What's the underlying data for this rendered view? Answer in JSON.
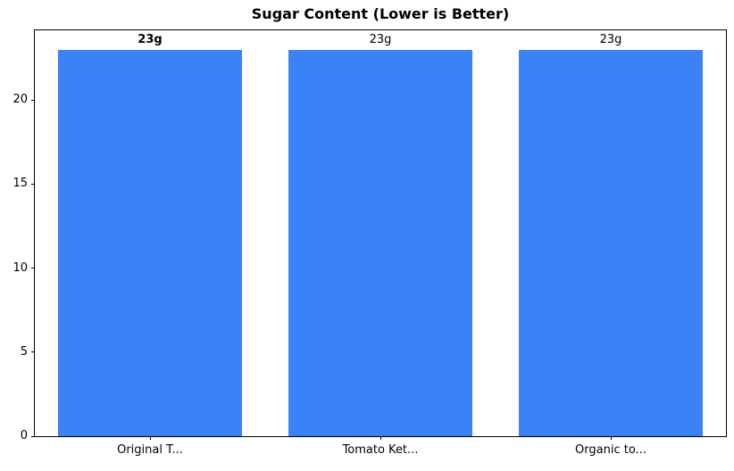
{
  "chart_data": {
    "type": "bar",
    "title": "Sugar Content (Lower is Better)",
    "categories": [
      "Original T...",
      "Tomato Ket...",
      "Organic to..."
    ],
    "values": [
      23,
      23,
      23
    ],
    "value_labels": [
      "23g",
      "23g",
      "23g"
    ],
    "value_label_bold": [
      true,
      false,
      false
    ],
    "xlabel": "",
    "ylabel": "",
    "ylim": [
      0,
      24.15
    ],
    "yticks": [
      0,
      5,
      10,
      15,
      20
    ],
    "bar_width_fraction": 0.8,
    "bar_color": "#3b82f6",
    "axis_color": "#000000",
    "text_color": "#000000",
    "background": "#ffffff",
    "grid": false,
    "legend": false
  }
}
